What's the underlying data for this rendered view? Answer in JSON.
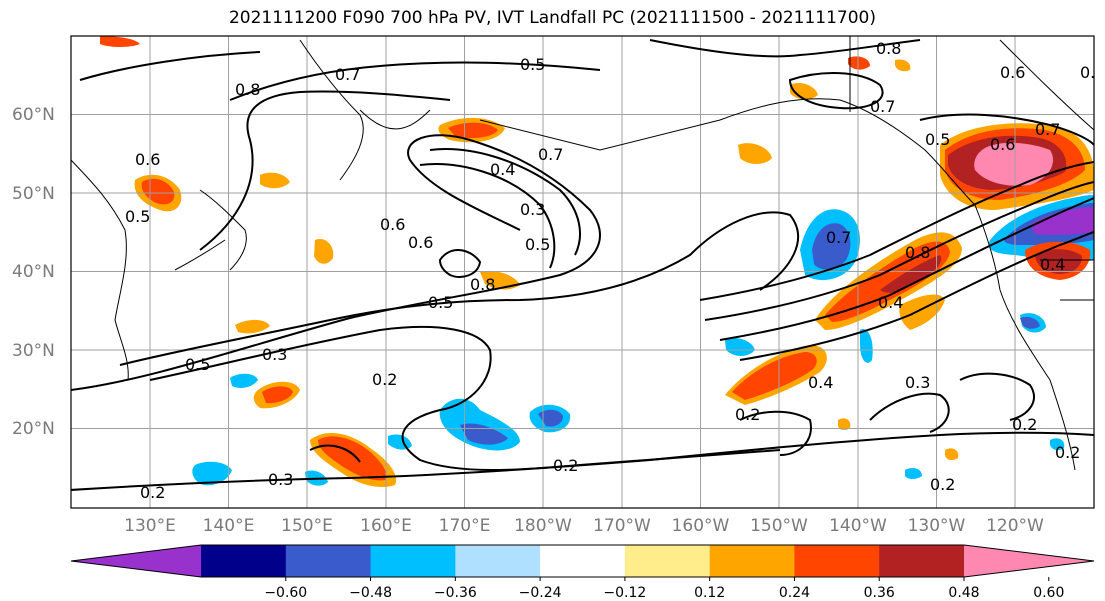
{
  "title": "2021111200 F090 700 hPa PV, IVT Landfall PC (2021111500 - 2021111700)",
  "lat_labels": [
    "60°N",
    "50°N",
    "40°N",
    "30°N",
    "20°N"
  ],
  "lon_labels": [
    "130°E",
    "140°E",
    "150°E",
    "160°E",
    "170°E",
    "180°W",
    "170°W",
    "160°W",
    "150°W",
    "140°W",
    "130°W",
    "120°W"
  ],
  "contour_labels": [
    "0.8",
    "0.7",
    "0.5",
    "0.6",
    "0.8",
    "0.6",
    "0.8",
    "0.6",
    "0.5",
    "0.8",
    "0.7",
    "0.7",
    "0.4",
    "0.3",
    "0.5",
    "0.6",
    "0.6",
    "0.7",
    "0.7",
    "0.5",
    "0.5",
    "0.5",
    "0.3",
    "0.8",
    "0.4",
    "0.4",
    "0.2",
    "0.2",
    "0.3",
    "0.4",
    "0.2",
    "0.2",
    "0.3",
    "0.2",
    "0.2",
    "0.2"
  ],
  "colorbar": {
    "colors": [
      "#9932cc",
      "#00008b",
      "#3a5bcc",
      "#00bfff",
      "#b0e0ff",
      "#ffffff",
      "#ffec8b",
      "#ffa500",
      "#ff4500",
      "#b22222",
      "#ff88b0"
    ],
    "tick_labels": [
      "−0.60",
      "−0.48",
      "−0.36",
      "−0.24",
      "−0.12",
      "0.12",
      "0.24",
      "0.36",
      "0.48",
      "0.60"
    ]
  }
}
